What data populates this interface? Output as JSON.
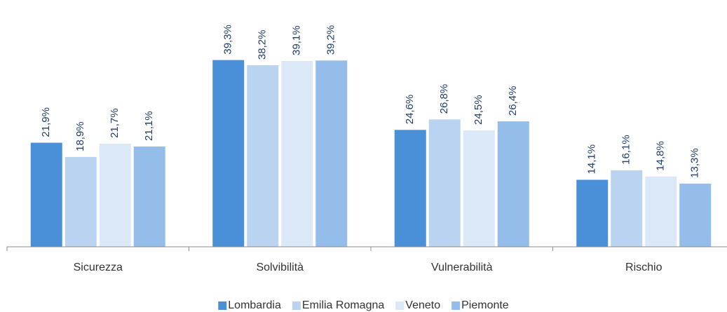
{
  "chart_data": {
    "type": "bar",
    "categories": [
      "Sicurezza",
      "Solvibilità",
      "Vulnerabilità",
      "Rischio"
    ],
    "series": [
      {
        "name": "Lombardia",
        "color": "#4a90d9",
        "values": [
          21.9,
          39.3,
          24.6,
          14.1
        ],
        "value_labels": [
          "21,9%",
          "39,3%",
          "24,6%",
          "14,1%"
        ]
      },
      {
        "name": "Emilia Romagna",
        "color": "#b9d3f1",
        "values": [
          18.9,
          38.2,
          26.8,
          16.1
        ],
        "value_labels": [
          "18,9%",
          "38,2%",
          "26,8%",
          "16,1%"
        ]
      },
      {
        "name": "Veneto",
        "color": "#dae8f8",
        "values": [
          21.7,
          39.1,
          24.5,
          14.8
        ],
        "value_labels": [
          "21,7%",
          "39,1%",
          "24,5%",
          "14,8%"
        ]
      },
      {
        "name": "Piemonte",
        "color": "#94bee9",
        "values": [
          21.1,
          39.2,
          26.4,
          13.3
        ],
        "value_labels": [
          "21,1%",
          "39,2%",
          "26,4%",
          "13,3%"
        ]
      }
    ],
    "ylim": [
      0,
      45
    ],
    "legend": "bottom"
  }
}
